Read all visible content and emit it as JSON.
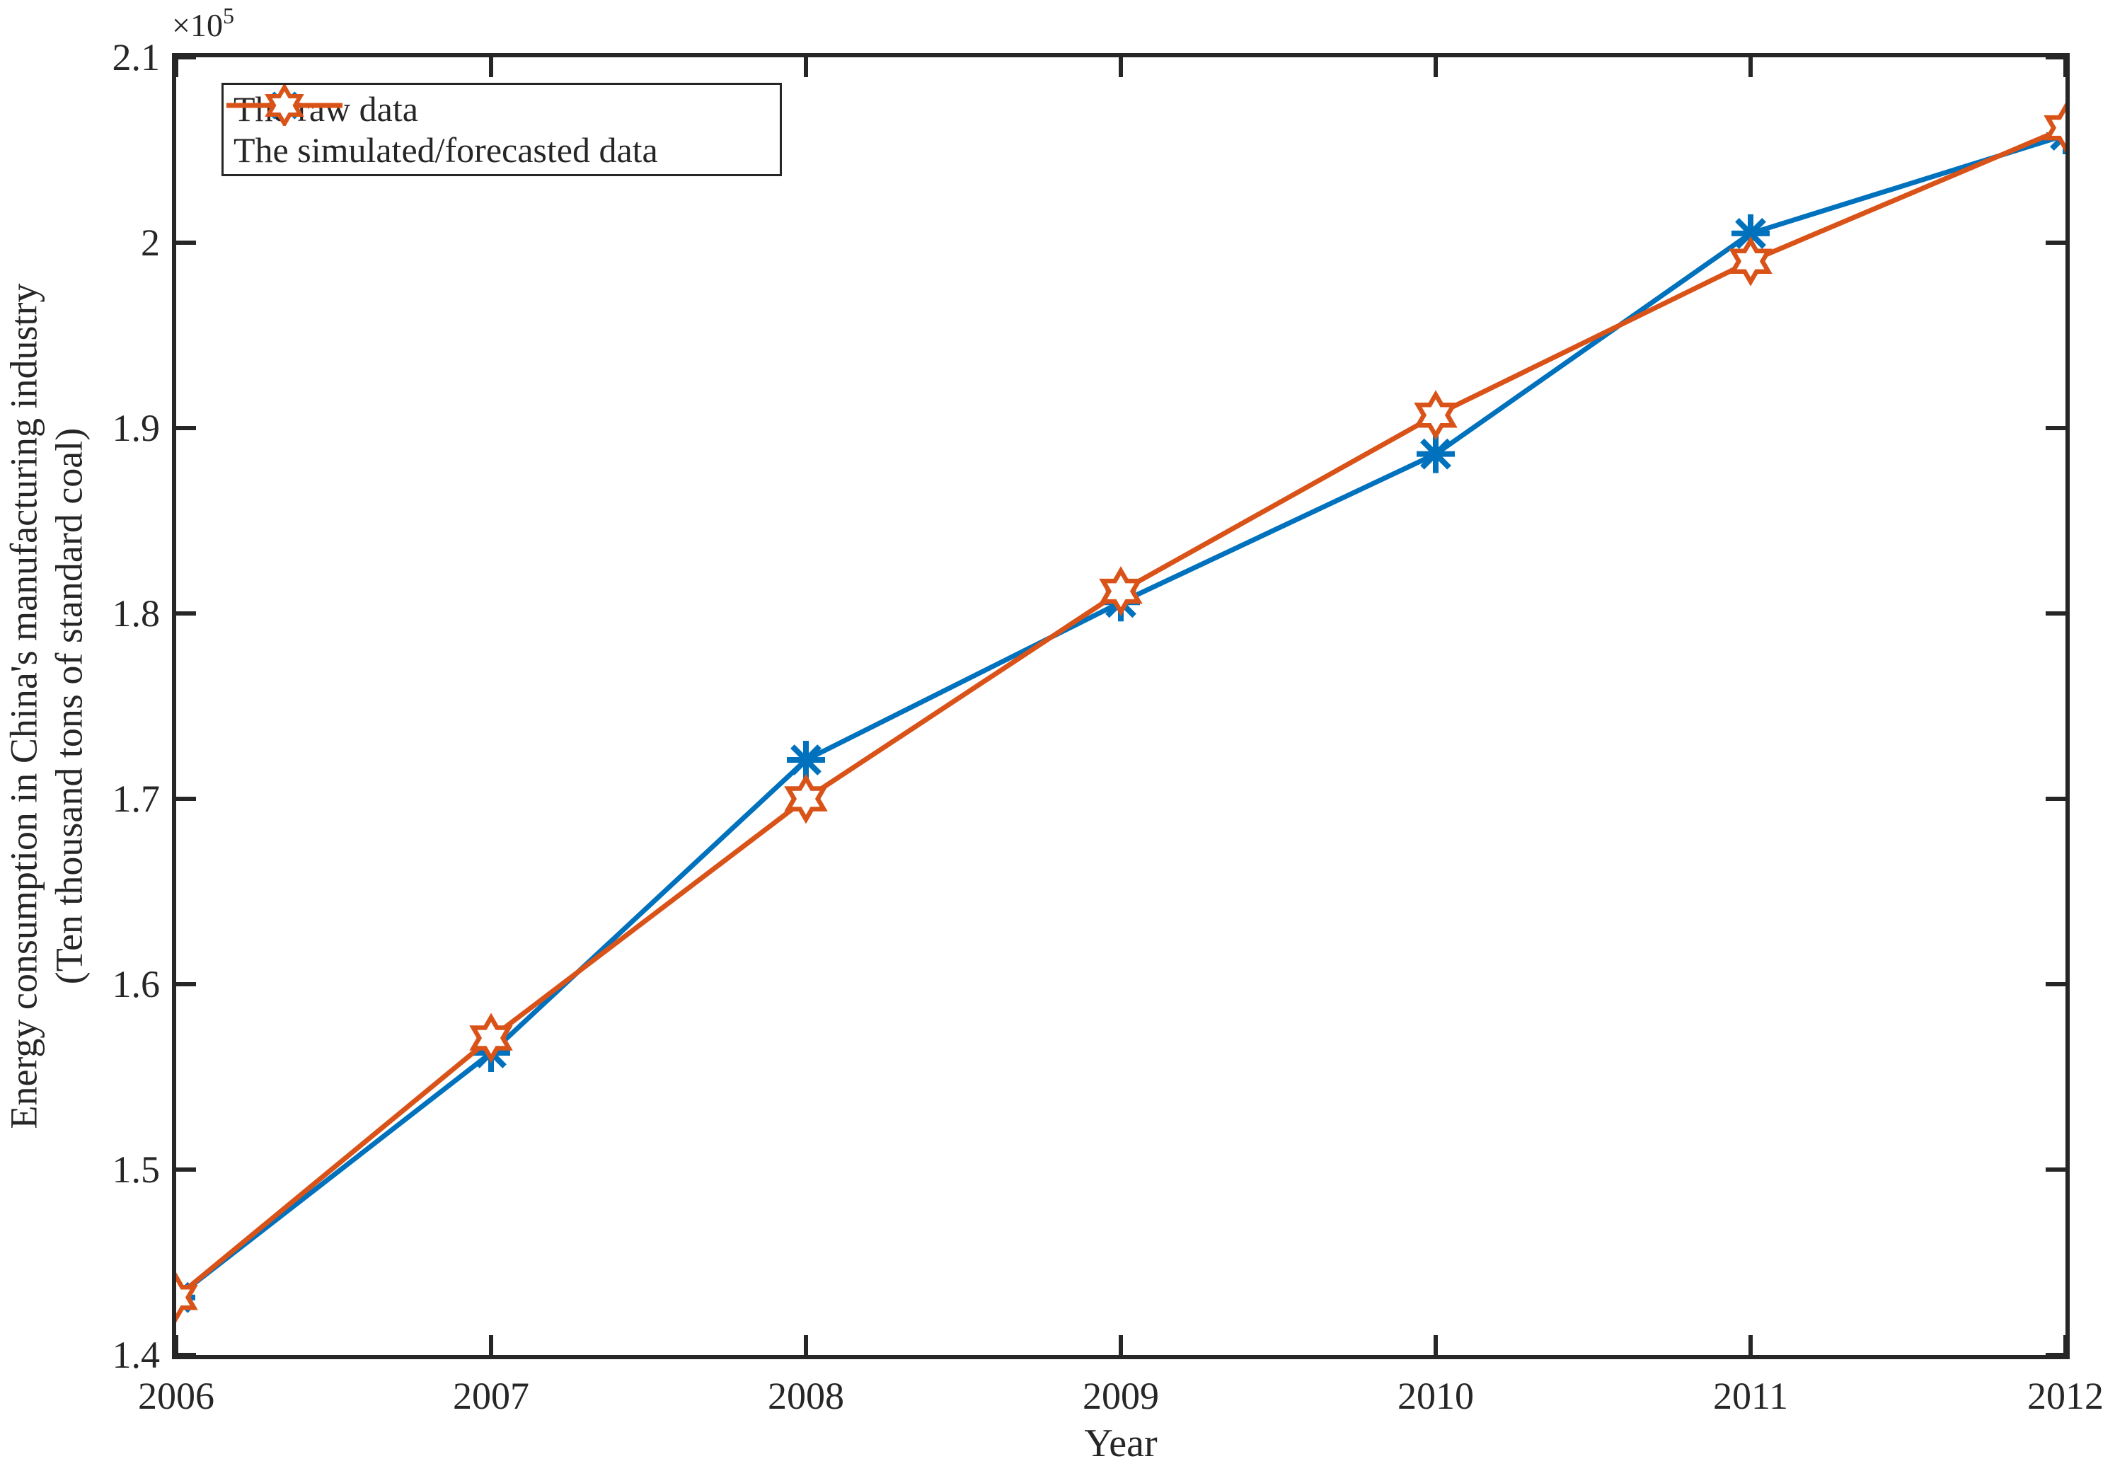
{
  "figure": {
    "background": "#ffffff",
    "axis_color": "#262626",
    "interaction": "static matlab-style figure"
  },
  "chart_data": {
    "type": "line",
    "title": "",
    "xlabel": "Year",
    "ylabel_line1": "Energy consumption in China's manufacturing industry",
    "ylabel_line2": "(Ten thousand tons of standard coal)",
    "y_exponent": {
      "base": "×10",
      "power": "5"
    },
    "units": "values in 10^5 ten thousand tons of standard coal",
    "x": [
      2006,
      2007,
      2008,
      2009,
      2010,
      2011,
      2012
    ],
    "xlim": [
      2006,
      2012
    ],
    "ylim": [
      1.4,
      2.1
    ],
    "xticks": [
      2006,
      2007,
      2008,
      2009,
      2010,
      2011,
      2012
    ],
    "xtick_labels": [
      "2006",
      "2007",
      "2008",
      "2009",
      "2010",
      "2011",
      "2012"
    ],
    "yticks": [
      1.4,
      1.5,
      1.6,
      1.7,
      1.8,
      1.9,
      2.0,
      2.1
    ],
    "ytick_labels": [
      "1.4",
      "1.5",
      "1.6",
      "1.7",
      "1.8",
      "1.9",
      "2",
      "2.1"
    ],
    "grid": false,
    "legend_position": "top-left inside",
    "axis_color": "#262626",
    "series": [
      {
        "name": "The raw data",
        "color": "#0072BD",
        "marker": "asterisk",
        "values": [
          1.431,
          1.563,
          1.721,
          1.806,
          1.886,
          2.005,
          2.058
        ]
      },
      {
        "name": "The simulated/forecasted data",
        "color": "#D95319",
        "marker": "hexagram",
        "values": [
          1.431,
          1.571,
          1.7,
          1.812,
          1.907,
          1.99,
          2.062
        ]
      }
    ]
  }
}
